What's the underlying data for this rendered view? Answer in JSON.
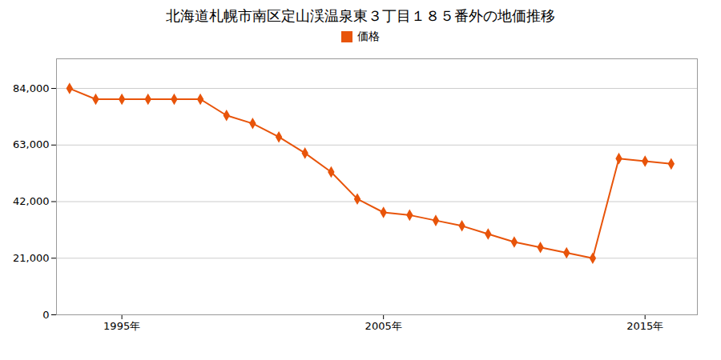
{
  "chart_data": {
    "type": "line",
    "title": "北海道札幌市南区定山渓温泉東３丁目１８５番外の地価推移",
    "x": [
      1993,
      1994,
      1995,
      1996,
      1997,
      1998,
      1999,
      2000,
      2001,
      2002,
      2003,
      2004,
      2005,
      2006,
      2007,
      2008,
      2009,
      2010,
      2011,
      2012,
      2013,
      2014,
      2015,
      2016
    ],
    "series": [
      {
        "name": "価格",
        "color": "#e8540a",
        "marker": "diamond",
        "values": [
          84000,
          80000,
          80000,
          80000,
          80000,
          80000,
          74000,
          71000,
          66000,
          60000,
          53000,
          43000,
          38000,
          37000,
          35000,
          33000,
          30000,
          27000,
          25000,
          23000,
          21000,
          58000,
          57000,
          56000
        ]
      }
    ],
    "xlim": [
      1992.5,
      2017
    ],
    "xticks": [
      {
        "value": 1995,
        "label": "1995年"
      },
      {
        "value": 2005,
        "label": "2005年"
      },
      {
        "value": 2015,
        "label": "2015年"
      }
    ],
    "ylim": [
      0,
      95000
    ],
    "yticks": [
      0,
      {
        "value": 21000,
        "label": "21,000"
      },
      {
        "value": 42000,
        "label": "42,000"
      },
      {
        "value": 63000,
        "label": "63,000"
      },
      {
        "value": 84000,
        "label": "84,000"
      }
    ],
    "grid": "y",
    "legend": "top"
  }
}
